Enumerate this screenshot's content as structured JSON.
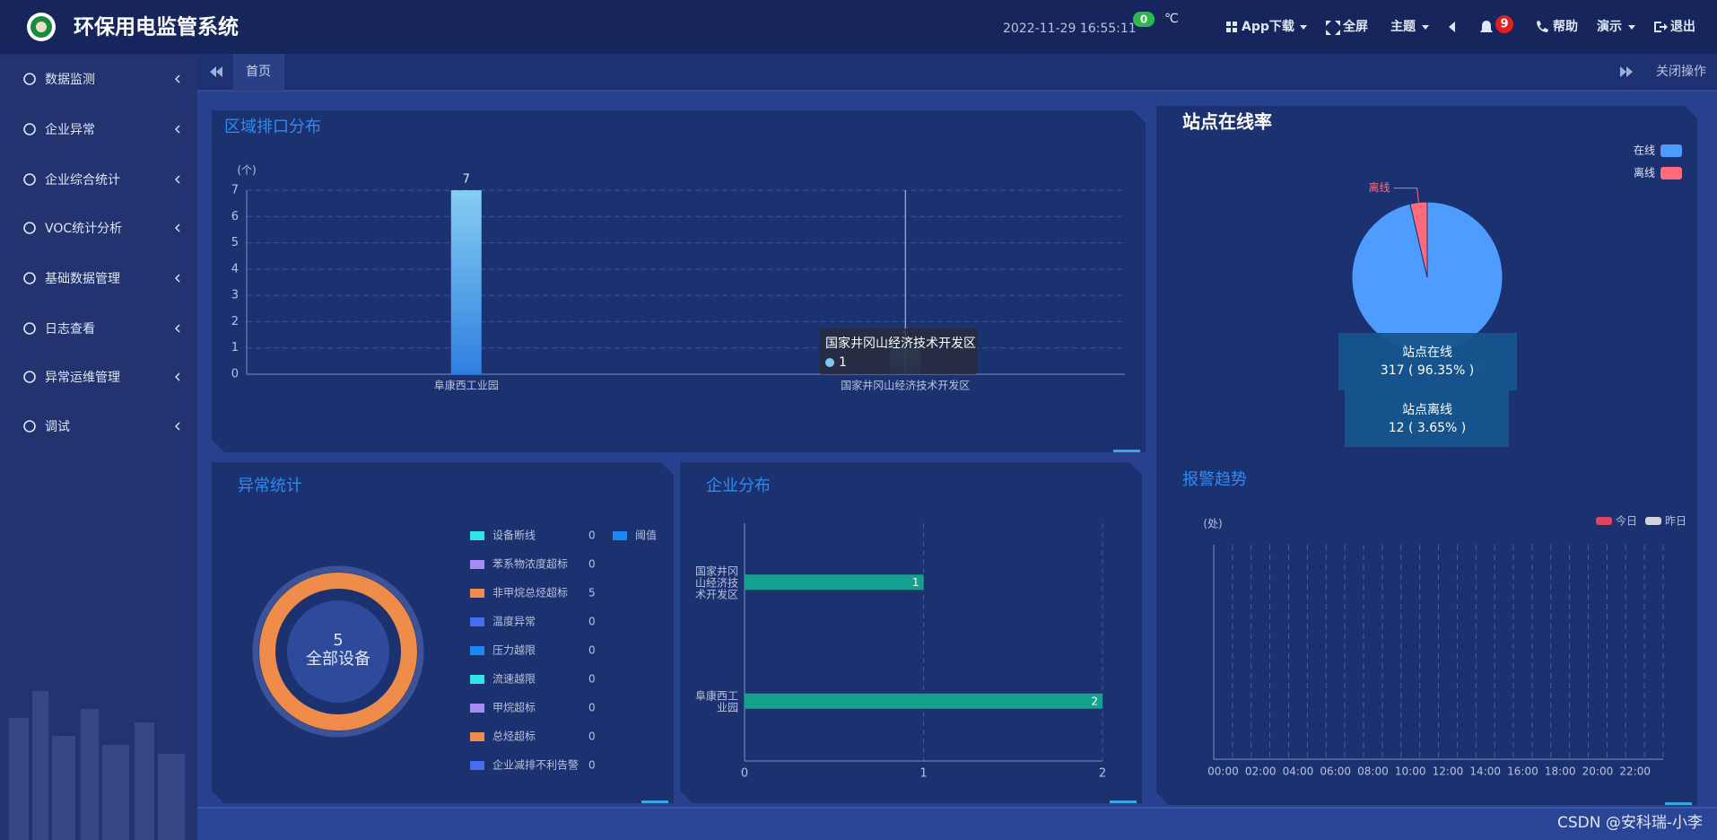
{
  "header": {
    "title": "环保用电监管系统",
    "datetime": "2022-11-29  16:55:11",
    "temperature": "0",
    "temperature_unit": "℃",
    "nav": [
      "App下载",
      "全屏",
      "主题",
      "帮助",
      "演示",
      "退出"
    ],
    "notifications": "9"
  },
  "sidebar": [
    "数据监测",
    "企业异常",
    "企业综合统计",
    "VOC统计分析",
    "基础数据管理",
    "日志查看",
    "异常运维管理",
    "调试"
  ],
  "tabs": {
    "home": "首页",
    "close": "关闭操作"
  },
  "watermark": "CSDN @安科瑞-小李",
  "chart_data": [
    {
      "type": "bar",
      "title": "区域排口分布",
      "y_label": "(个)",
      "categories": [
        "阜康西工业园",
        "国家井冈山经济技术开发区"
      ],
      "values": [
        7,
        1
      ],
      "color": "#3a8ee6",
      "ylim": [
        0,
        7
      ],
      "yticks": [
        0,
        1,
        2,
        3,
        4,
        5,
        6,
        7
      ],
      "grid": true
    },
    {
      "type": "donut",
      "title": "异常统计",
      "center_value": 5,
      "center_label": "全部设备",
      "series": [
        {
          "name": "设备断线",
          "color": "#2ee6e6",
          "value": 0
        },
        {
          "name": "苯系物浓度超标",
          "color": "#a58cf5",
          "value": 0
        },
        {
          "name": "非甲烷总烃超标",
          "color": "#f08c4a",
          "value": 5
        },
        {
          "name": "温度异常",
          "color": "#4a6cf0",
          "value": 0
        },
        {
          "name": "压力越限",
          "color": "#1e88f0",
          "value": 0
        },
        {
          "name": "流速越限",
          "color": "#2ee6e6",
          "value": 0
        },
        {
          "name": "甲烷超标",
          "color": "#a58cf5",
          "value": 0
        },
        {
          "name": "总烃超标",
          "color": "#f08c4a",
          "value": 0
        },
        {
          "name": "企业减排不利告警",
          "color": "#4a6cf0",
          "value": 0
        },
        {
          "name": "阈值",
          "color": "#1e88f0",
          "value": null
        }
      ]
    },
    {
      "type": "hbar",
      "title": "企业分布",
      "categories": [
        "国家井冈山经济技术开发区",
        "阜康西工业园"
      ],
      "values": [
        1,
        2
      ],
      "color": "#16a08e",
      "xlim": [
        0,
        2
      ],
      "xticks": [
        0,
        1,
        2
      ],
      "grid": true
    },
    {
      "type": "pie",
      "title": "站点在线率",
      "series": [
        {
          "name": "在线",
          "color": "#4e9cff",
          "value": 317
        },
        {
          "name": "离线",
          "color": "#ff6b7a",
          "value": 12
        }
      ],
      "tooltip_labels": [
        "站点在线",
        "站点离线"
      ],
      "value_labels": [
        "317 ( 96.35% )",
        "12 ( 3.65% )"
      ],
      "legend": "top-right"
    },
    {
      "type": "line",
      "title": "报警趋势",
      "y_label": "(处)",
      "categories": [
        "00:00",
        null,
        "02:00",
        null,
        "04:00",
        null,
        "06:00",
        null,
        "08:00",
        null,
        "10:00",
        null,
        "12:00",
        null,
        "14:00",
        null,
        "16:00",
        null,
        "18:00",
        null,
        "20:00",
        null,
        "22:00",
        null
      ],
      "series": [
        {
          "name": "今日",
          "color": "#e0455e",
          "values": [
            null,
            null,
            null,
            null,
            null,
            null,
            null,
            null,
            null,
            null,
            null,
            null,
            null,
            null,
            null,
            null,
            null,
            null,
            null,
            null,
            null,
            null,
            null,
            null
          ]
        },
        {
          "name": "昨日",
          "color": "#d0d4e0",
          "values": [
            null,
            null,
            null,
            null,
            null,
            null,
            null,
            null,
            null,
            null,
            null,
            null,
            null,
            null,
            null,
            null,
            null,
            null,
            null,
            null,
            null,
            null,
            null,
            null
          ]
        }
      ],
      "legend": "top-right",
      "grid": true
    }
  ]
}
